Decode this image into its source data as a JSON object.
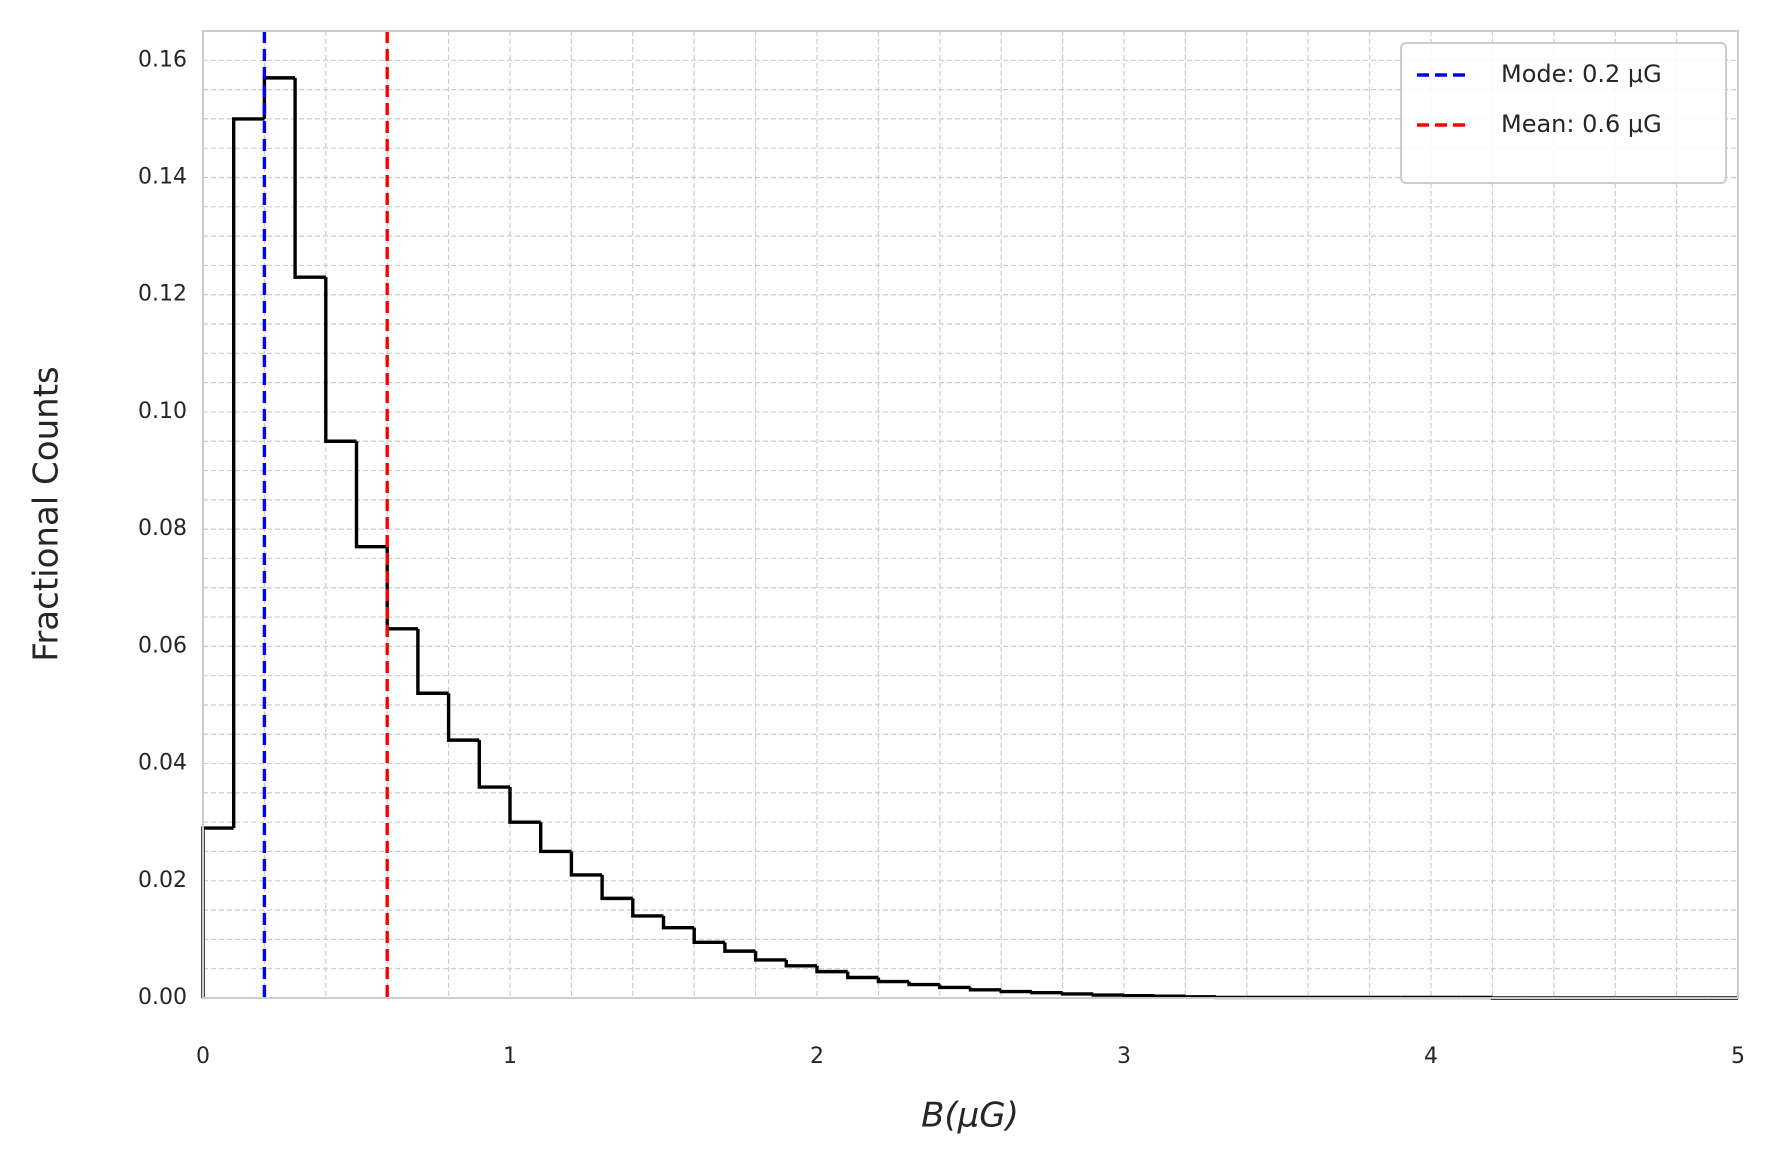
{
  "chart_data": {
    "type": "histogram",
    "xlabel": "B(μG)",
    "ylabel": "Fractional Counts",
    "bins": [
      0,
      0.1,
      0.2,
      0.3,
      0.4,
      0.5,
      0.6,
      0.7,
      0.8,
      0.9,
      1.0,
      1.1,
      1.2,
      1.3,
      1.4,
      1.5,
      1.6,
      1.7,
      1.8,
      1.9,
      2.0,
      2.1,
      2.2,
      2.3,
      2.4,
      2.5,
      2.6,
      2.7,
      2.8,
      2.9,
      3.0,
      3.1,
      3.2,
      3.3,
      3.4,
      3.5,
      3.6,
      3.7,
      3.8,
      3.9,
      4.0,
      4.1,
      4.2,
      4.3,
      4.4,
      4.5,
      4.6,
      4.7,
      4.8,
      4.9,
      5.0
    ],
    "values": [
      0.029,
      0.15,
      0.157,
      0.123,
      0.095,
      0.077,
      0.063,
      0.052,
      0.044,
      0.036,
      0.03,
      0.025,
      0.021,
      0.017,
      0.014,
      0.012,
      0.0095,
      0.008,
      0.0065,
      0.0055,
      0.0045,
      0.0035,
      0.0028,
      0.0023,
      0.0018,
      0.0014,
      0.0011,
      0.0009,
      0.0007,
      0.0005,
      0.0004,
      0.0003,
      0.0002,
      0.0001,
      0.0001,
      0.0001,
      0.0001,
      0.0001,
      0.0001,
      0.0001,
      0.0001,
      0.0001,
      0,
      0,
      0,
      0,
      0,
      0,
      0,
      0
    ],
    "color": "#000000",
    "vlines": [
      {
        "name": "Mode: 0.2 μG",
        "value": 0.2,
        "color": "#0000ff"
      },
      {
        "name": "Mean: 0.6 μG",
        "value": 0.6,
        "color": "#ff0000"
      }
    ],
    "xlim": [
      0,
      5
    ],
    "ylim": [
      0,
      0.165
    ],
    "xticks": [
      0,
      1,
      2,
      3,
      4,
      5
    ],
    "yticks": [
      {
        "value": 0,
        "label": "0.00"
      },
      {
        "value": 0.02,
        "label": "0.02"
      },
      {
        "value": 0.04,
        "label": "0.04"
      },
      {
        "value": 0.06,
        "label": "0.06"
      },
      {
        "value": 0.08,
        "label": "0.08"
      },
      {
        "value": 0.1,
        "label": "0.10"
      },
      {
        "value": 0.12,
        "label": "0.12"
      },
      {
        "value": 0.14,
        "label": "0.14"
      },
      {
        "value": 0.16,
        "label": "0.16"
      }
    ],
    "xminorticks": [
      0.2,
      0.4,
      0.6,
      0.8,
      1.2,
      1.4,
      1.6,
      1.8,
      2.2,
      2.4,
      2.6,
      2.8,
      3.2,
      3.4,
      3.6,
      3.8,
      4.2,
      4.4,
      4.6,
      4.8
    ],
    "yminorticks": [
      0.005,
      0.01,
      0.015,
      0.025,
      0.03,
      0.035,
      0.045,
      0.05,
      0.055,
      0.065,
      0.07,
      0.075,
      0.085,
      0.09,
      0.095,
      0.105,
      0.11,
      0.115,
      0.125,
      0.13,
      0.135,
      0.145,
      0.15,
      0.155
    ],
    "grid": true,
    "legend": "upper right"
  }
}
